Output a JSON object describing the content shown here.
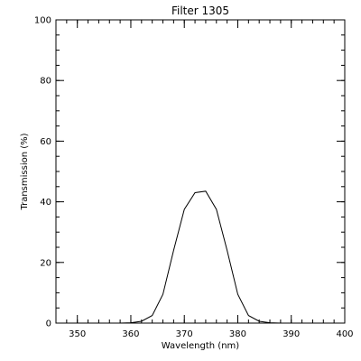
{
  "chart_data": {
    "type": "line",
    "title": "Filter 1305",
    "xlabel": "Wavelength (nm)",
    "ylabel": "Transmission (%)",
    "xlim": [
      346,
      400
    ],
    "ylim": [
      0,
      100
    ],
    "x_ticks": [
      350,
      360,
      370,
      380,
      390,
      400
    ],
    "x_tick_labels": [
      "350",
      "360",
      "370",
      "380",
      "390",
      "400"
    ],
    "x_minor_step": 2,
    "y_ticks": [
      0,
      20,
      40,
      60,
      80,
      100
    ],
    "y_tick_labels": [
      "0",
      "20",
      "40",
      "60",
      "80",
      "100"
    ],
    "y_minor_step": 5,
    "grid": false,
    "legend": false,
    "series": [
      {
        "x": [
          358,
          360,
          362,
          364,
          366,
          368,
          370,
          372,
          374,
          376,
          378,
          380,
          382,
          384,
          386,
          388,
          390
        ],
        "y": [
          0,
          0.1,
          0.6,
          2.5,
          9.5,
          24,
          37.5,
          43,
          43.5,
          37.5,
          24,
          9.5,
          2.5,
          0.6,
          0.1,
          0,
          0
        ]
      }
    ]
  }
}
